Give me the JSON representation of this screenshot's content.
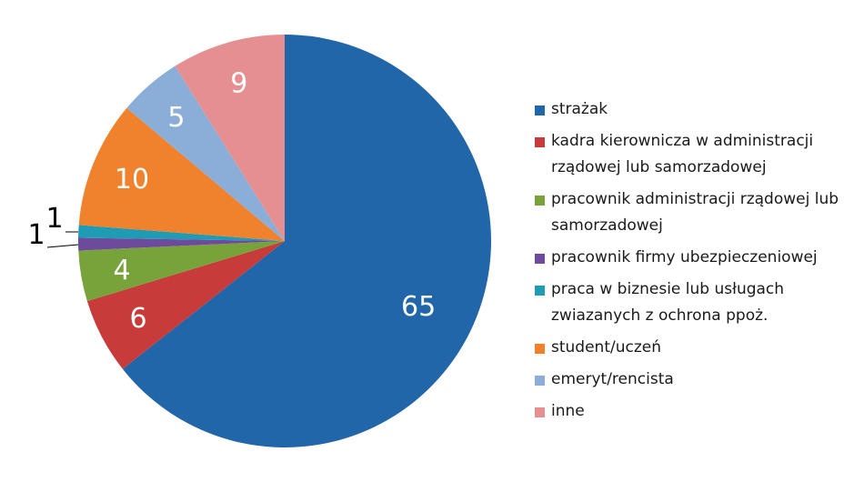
{
  "chart_data": {
    "type": "pie",
    "categories": [
      "strażak",
      "kadra kierownicza w administracji rządowej lub samorzadowej",
      "pracownik administracji rządowej lub samorzadowej",
      "pracownik firmy ubezpieczeniowej",
      "praca w biznesie lub usługach zwiazanych z ochrona ppoż.",
      "student/uczeń",
      "emeryt/rencista",
      "inne"
    ],
    "values": [
      65,
      6,
      4,
      1,
      1,
      10,
      5,
      9
    ],
    "colors": [
      "#2166a8",
      "#c73c3a",
      "#77a33a",
      "#6e4a9c",
      "#1f9bb3",
      "#f0822d",
      "#8aaed8",
      "#e58f91"
    ],
    "start_angle_deg": 0,
    "direction": "clockwise",
    "legend_position": "right"
  },
  "legend": {
    "items": [
      {
        "lines": [
          "strażak"
        ]
      },
      {
        "lines": [
          "kadra kierownicza w administracji",
          "rządowej lub samorzadowej"
        ]
      },
      {
        "lines": [
          "pracownik administracji rządowej lub",
          "samorzadowej"
        ]
      },
      {
        "lines": [
          "pracownik firmy ubezpieczeniowej"
        ]
      },
      {
        "lines": [
          "praca w biznesie lub usługach",
          "zwiazanych z ochrona ppoż."
        ]
      },
      {
        "lines": [
          "student/uczeń"
        ]
      },
      {
        "lines": [
          "emeryt/rencista"
        ]
      },
      {
        "lines": [
          "inne"
        ]
      }
    ]
  }
}
